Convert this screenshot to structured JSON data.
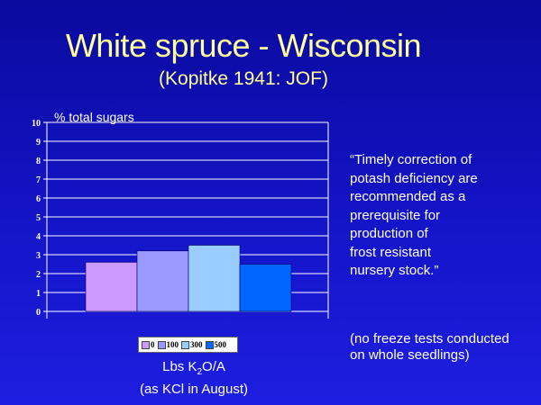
{
  "title": "White spruce - Wisconsin",
  "subtitle": "(Kopitke 1941: JOF)",
  "quote_lines": [
    "“Timely correction of",
    "potash deficiency are",
    "recommended as a",
    "prerequisite for",
    "production of",
    "frost resistant",
    "nursery stock.”"
  ],
  "note_lines": [
    "(no freeze tests conducted",
    "on  whole seedlings)"
  ],
  "xlabel": {
    "prefix": "Lbs K",
    "sub": "2",
    "suffix": "O/A",
    "line2": "(as KCl in August)"
  },
  "chart_data": {
    "type": "bar",
    "ylabel": "% total sugars",
    "ylim": [
      0,
      10
    ],
    "yticks": [
      "0",
      "1",
      "2",
      "3",
      "4",
      "5",
      "6",
      "7",
      "8",
      "9",
      "10"
    ],
    "grid": true,
    "legend_position": "bottom",
    "series": [
      {
        "name": "0",
        "value": 2.6,
        "color": "#cc99ff"
      },
      {
        "name": "100",
        "value": 3.2,
        "color": "#9999ff"
      },
      {
        "name": "300",
        "value": 3.5,
        "color": "#99ccff"
      },
      {
        "name": "500",
        "value": 2.5,
        "color": "#0066ff"
      }
    ]
  }
}
